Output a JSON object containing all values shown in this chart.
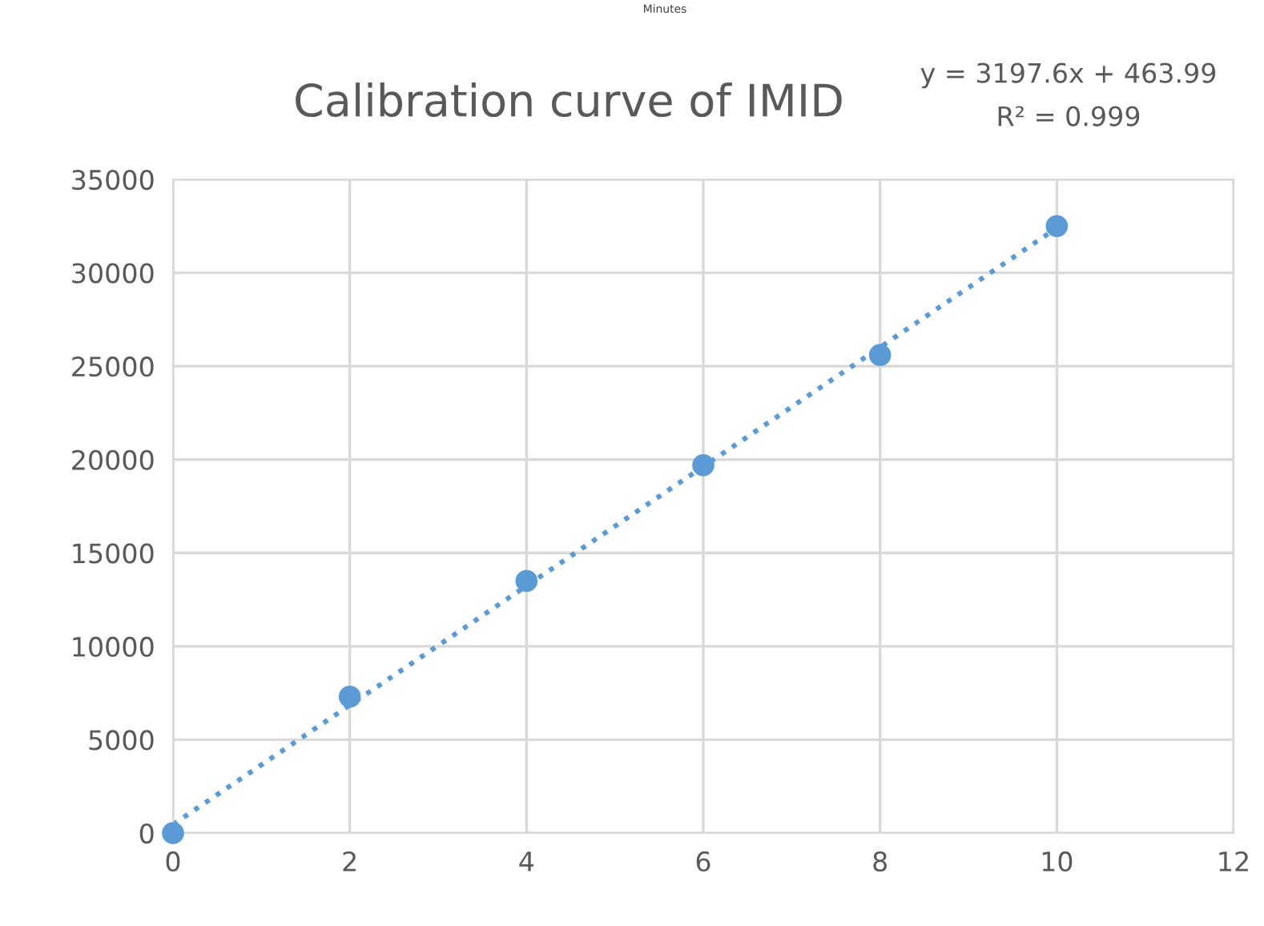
{
  "chart_data": {
    "type": "scatter",
    "title": "Calibration curve of IMID",
    "annotations": [
      "Minutes",
      "y = 3197.6x + 463.99",
      "R² = 0.999"
    ],
    "series": [
      {
        "color": "#5b9bd5",
        "x": [
          0,
          2,
          4,
          6,
          8,
          10
        ],
        "values": [
          0,
          7300,
          13500,
          19700,
          25600,
          32500
        ],
        "marker": "circle"
      },
      {
        "type": "line",
        "color": "#5b9bd5",
        "x": [
          0,
          10
        ],
        "values": [
          460,
          32400
        ],
        "line_style": "dotted",
        "marker": "none"
      }
    ],
    "xlim": [
      0,
      12
    ],
    "xticks": [
      0,
      2,
      4,
      6,
      8,
      10,
      12
    ],
    "ylim": [
      0,
      35000
    ],
    "yticks": [
      0,
      5000,
      10000,
      15000,
      20000,
      25000,
      30000,
      35000
    ],
    "grid": true,
    "legend": false
  }
}
